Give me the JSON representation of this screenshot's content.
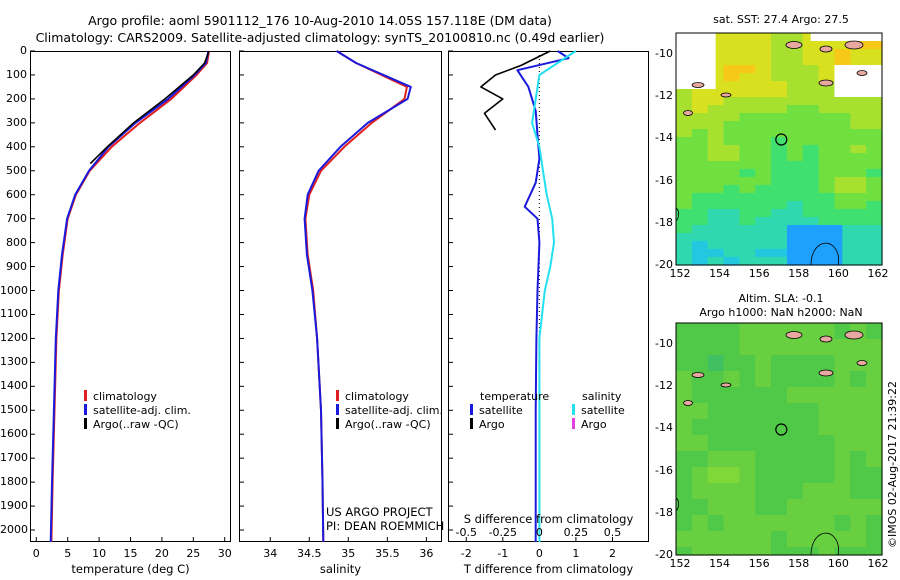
{
  "header": {
    "line1": "Argo profile: aoml 5901112_176 10-Aug-2010 14.05S 157.118E (DM data)",
    "line2": "Climatology: CARS2009. Satellite-adjusted climatology: synTS_20100810.nc (0.49d earlier)"
  },
  "stamp": "©IMOS 02-Aug-2017 21:39:22",
  "credits": {
    "project": "US ARGO PROJECT",
    "pi": "PI: DEAN ROEMMICH"
  },
  "colors": {
    "climatology": "#e02020",
    "satellite": "#1a1adc",
    "argo": "#000000",
    "salinity_satellite": "#22e0f0",
    "salinity_argo": "#e040e0",
    "coast": "#000000",
    "land": "#e8a8a0"
  },
  "chart_data": [
    {
      "type": "line",
      "name": "temperature-profile",
      "xlabel": "temperature (deg C)",
      "ylim": [
        2050,
        0
      ],
      "xlim": [
        -1,
        31
      ],
      "xticks": [
        0,
        5,
        10,
        15,
        20,
        25,
        30
      ],
      "yticks": [
        0,
        100,
        200,
        300,
        400,
        500,
        600,
        700,
        800,
        900,
        1000,
        1100,
        1200,
        1300,
        1400,
        1500,
        1600,
        1700,
        1800,
        1900,
        2000
      ],
      "legend": [
        "climatology",
        "satellite-adj. clim.",
        "Argo(..raw -QC)"
      ],
      "series": [
        {
          "name": "climatology",
          "x": [
            27.5,
            27.2,
            25.5,
            21.5,
            16.5,
            12.0,
            8.5,
            6.3,
            5.0,
            4.2,
            3.6,
            3.2,
            2.9,
            2.6,
            2.4
          ],
          "y": [
            0,
            50,
            100,
            200,
            300,
            400,
            500,
            600,
            700,
            850,
            1000,
            1200,
            1500,
            1800,
            2050
          ]
        },
        {
          "name": "satellite-adj. clim.",
          "x": [
            27.4,
            27.0,
            25.2,
            21.0,
            15.8,
            11.5,
            8.4,
            6.2,
            4.9,
            4.1,
            3.5,
            3.1,
            2.8,
            2.5,
            2.3
          ],
          "y": [
            0,
            50,
            100,
            200,
            300,
            400,
            500,
            600,
            700,
            850,
            1000,
            1200,
            1500,
            1800,
            2050
          ]
        },
        {
          "name": "Argo(..raw -QC)",
          "x": [
            27.5,
            26.8,
            25.0,
            20.5,
            15.5,
            11.3,
            8.6
          ],
          "y": [
            0,
            50,
            100,
            200,
            300,
            400,
            470
          ]
        }
      ]
    },
    {
      "type": "line",
      "name": "salinity-profile",
      "xlabel": "salinity",
      "ylim": [
        2050,
        0
      ],
      "xlim": [
        33.6,
        36.2
      ],
      "xticks": [
        34,
        34.5,
        35,
        35.5,
        36
      ],
      "legend": [
        "climatology",
        "satellite-adj. clim.",
        "Argo(..raw -QC)"
      ],
      "series": [
        {
          "name": "climatology",
          "x": [
            34.85,
            35.1,
            35.75,
            35.72,
            35.3,
            34.95,
            34.65,
            34.5,
            34.45,
            34.48,
            34.55,
            34.6,
            34.65,
            34.67,
            34.68
          ],
          "y": [
            0,
            50,
            150,
            200,
            300,
            400,
            500,
            600,
            700,
            850,
            1000,
            1200,
            1500,
            1800,
            2050
          ]
        },
        {
          "name": "satellite-adj. clim.",
          "x": [
            34.85,
            35.1,
            35.8,
            35.76,
            35.25,
            34.9,
            34.62,
            34.48,
            34.44,
            34.47,
            34.54,
            34.6,
            34.65,
            34.67,
            34.68
          ],
          "y": [
            0,
            50,
            150,
            200,
            300,
            400,
            500,
            600,
            700,
            850,
            1000,
            1200,
            1500,
            1800,
            2050
          ]
        }
      ]
    },
    {
      "type": "line",
      "name": "difference-profile",
      "xlabel": "T difference from climatology",
      "x2label": "S difference from climatology",
      "ylim": [
        2050,
        0
      ],
      "xlim": [
        -2.5,
        3.0
      ],
      "xticks": [
        -2,
        -1,
        0,
        1,
        2
      ],
      "x2ticks": [
        "-0.5",
        "-0.25",
        "0",
        "0.25",
        "0.5"
      ],
      "legend_left": [
        "temperature",
        "satellite",
        "Argo"
      ],
      "legend_right": [
        "salinity",
        "satellite",
        "Argo"
      ],
      "series": [
        {
          "name": "temperature satellite",
          "x": [
            0.5,
            0.8,
            -0.6,
            -0.3,
            -0.1,
            -0.05,
            0.0,
            -0.1,
            -0.4,
            -0.05,
            0.0,
            -0.05,
            -0.08,
            -0.1,
            -0.1,
            -0.1
          ],
          "y": [
            0,
            30,
            80,
            150,
            250,
            350,
            450,
            550,
            650,
            700,
            800,
            1000,
            1200,
            1500,
            1800,
            2050
          ]
        },
        {
          "name": "temperature Argo",
          "x": [
            0.3,
            -0.5,
            -1.2,
            -1.6,
            -1.0,
            -1.5,
            -1.2
          ],
          "y": [
            0,
            60,
            100,
            150,
            200,
            260,
            330
          ]
        },
        {
          "name": "salinity satellite",
          "x": [
            1.0,
            0.5,
            0.0,
            -0.1,
            -0.2,
            0.0,
            0.1,
            0.2,
            0.35,
            0.4,
            0.3,
            0.15,
            0.0,
            0.0,
            0.0
          ],
          "y": [
            0,
            50,
            100,
            200,
            300,
            400,
            500,
            600,
            700,
            800,
            900,
            1000,
            1200,
            1500,
            2050
          ]
        }
      ]
    }
  ],
  "maps": [
    {
      "name": "sst-map",
      "title": "sat. SST: 27.4 Argo: 27.5",
      "title2": "",
      "xticks": [
        "152",
        "154",
        "156",
        "158",
        "160",
        "162"
      ],
      "yticks": [
        "-10",
        "-12",
        "-14",
        "-16",
        "-18",
        "-20"
      ]
    },
    {
      "name": "sla-map",
      "title": "Altim. SLA: -0.1",
      "title2": "Argo h1000: NaN h2000: NaN",
      "xticks": [
        "152",
        "154",
        "156",
        "158",
        "160",
        "162"
      ],
      "yticks": [
        "-10",
        "-12",
        "-14",
        "-16",
        "-18",
        "-20"
      ]
    }
  ]
}
